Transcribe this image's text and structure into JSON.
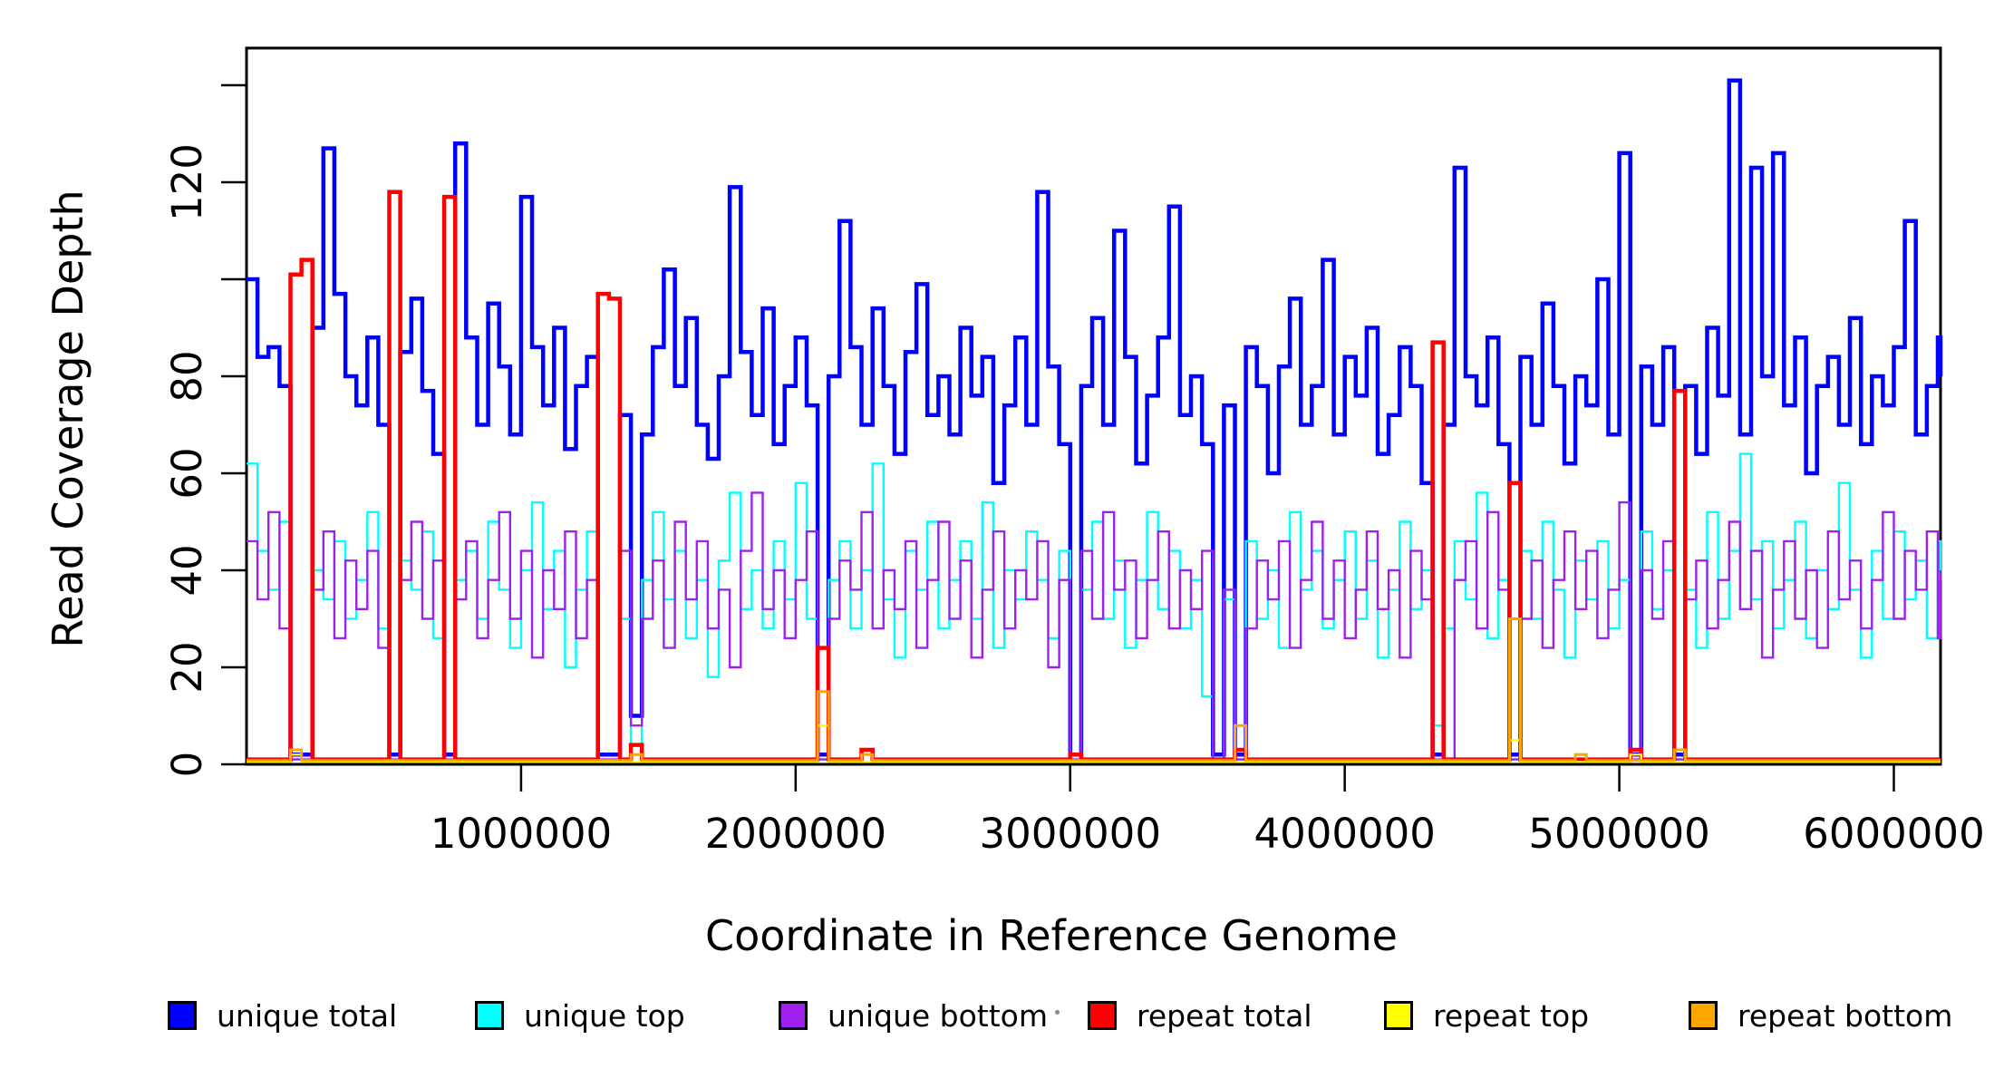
{
  "figure": {
    "y_axis": {
      "title": "Read Coverage Depth",
      "ticks": [
        0,
        20,
        40,
        60,
        80,
        100,
        120,
        140
      ],
      "labeled_ticks": [
        0,
        20,
        40,
        60,
        80,
        120
      ],
      "range": [
        0,
        147
      ]
    },
    "x_axis": {
      "title": "Coordinate in Reference Genome",
      "ticks": [
        1000000,
        2000000,
        3000000,
        4000000,
        5000000,
        6000000
      ],
      "tick_labels": [
        "1000000",
        "2000000",
        "3000000",
        "4000000",
        "5000000",
        "6000000"
      ],
      "range": [
        0,
        6170000
      ]
    }
  },
  "legend": {
    "items": [
      {
        "label": "unique total",
        "color": "#0000FF"
      },
      {
        "label": "unique top",
        "color": "#00FFFF"
      },
      {
        "label": "unique bottom",
        "color": "#A020F0"
      },
      {
        "label": "repeat total",
        "color": "#FF0000"
      },
      {
        "label": "repeat top",
        "color": "#FFFF00"
      },
      {
        "label": "repeat bottom",
        "color": "#FFA500"
      }
    ]
  },
  "chart_data": {
    "type": "line",
    "step": true,
    "grid": false,
    "legend_position": "bottom",
    "xlim": [
      0,
      6170000
    ],
    "ylim": [
      0,
      147
    ],
    "window_size": 40000,
    "x_start": 0,
    "series": [
      {
        "name": "unique total",
        "color": "#0000FF",
        "line_width": 4.5,
        "values": [
          100,
          84,
          86,
          78,
          2,
          2,
          90,
          127,
          97,
          80,
          74,
          88,
          70,
          2,
          85,
          96,
          77,
          64,
          2,
          128,
          88,
          70,
          95,
          82,
          68,
          117,
          86,
          74,
          90,
          65,
          78,
          84,
          2,
          2,
          72,
          10,
          68,
          86,
          102,
          78,
          92,
          70,
          63,
          80,
          119,
          85,
          72,
          94,
          66,
          78,
          88,
          74,
          2,
          80,
          112,
          86,
          70,
          94,
          78,
          64,
          85,
          99,
          72,
          80,
          68,
          90,
          76,
          84,
          58,
          74,
          88,
          70,
          118,
          82,
          66,
          2,
          78,
          92,
          70,
          110,
          84,
          62,
          76,
          88,
          115,
          72,
          80,
          66,
          2,
          74,
          2,
          86,
          78,
          60,
          82,
          96,
          70,
          78,
          104,
          68,
          84,
          76,
          90,
          64,
          72,
          86,
          78,
          58,
          2,
          70,
          123,
          80,
          74,
          88,
          66,
          2,
          84,
          70,
          95,
          78,
          62,
          80,
          74,
          100,
          68,
          126,
          2,
          82,
          70,
          86,
          2,
          78,
          64,
          90,
          76,
          141,
          68,
          123,
          80,
          126,
          74,
          88,
          60,
          78,
          84,
          70,
          92,
          66,
          80,
          74,
          86,
          112,
          68,
          78,
          88,
          80
        ]
      },
      {
        "name": "unique top",
        "color": "#00FFFF",
        "line_width": 2.4,
        "values": [
          62,
          44,
          36,
          50,
          1,
          1,
          40,
          34,
          46,
          30,
          38,
          52,
          28,
          1,
          42,
          36,
          48,
          26,
          1,
          38,
          44,
          30,
          50,
          36,
          24,
          40,
          54,
          32,
          44,
          20,
          36,
          48,
          1,
          1,
          30,
          2,
          38,
          52,
          34,
          44,
          26,
          38,
          18,
          42,
          56,
          32,
          40,
          28,
          46,
          34,
          58,
          30,
          1,
          38,
          46,
          28,
          40,
          62,
          34,
          22,
          44,
          36,
          50,
          28,
          38,
          46,
          30,
          54,
          24,
          40,
          34,
          48,
          38,
          26,
          44,
          1,
          36,
          50,
          30,
          42,
          24,
          38,
          52,
          32,
          44,
          28,
          38,
          14,
          1,
          34,
          1,
          46,
          30,
          40,
          24,
          52,
          36,
          44,
          28,
          38,
          48,
          30,
          42,
          22,
          36,
          50,
          32,
          40,
          8,
          28,
          46,
          34,
          56,
          26,
          38,
          1,
          44,
          30,
          50,
          36,
          22,
          42,
          34,
          46,
          28,
          38,
          1,
          48,
          32,
          40,
          1,
          36,
          24,
          52,
          30,
          44,
          64,
          34,
          46,
          28,
          38,
          50,
          26,
          40,
          32,
          58,
          36,
          22,
          44,
          30,
          48,
          34,
          42,
          26,
          46,
          38
        ]
      },
      {
        "name": "unique bottom",
        "color": "#A020F0",
        "line_width": 2.4,
        "values": [
          46,
          34,
          52,
          28,
          1,
          1,
          36,
          48,
          26,
          42,
          32,
          44,
          24,
          1,
          38,
          50,
          30,
          42,
          1,
          34,
          46,
          26,
          38,
          52,
          30,
          44,
          22,
          40,
          32,
          48,
          26,
          38,
          1,
          1,
          44,
          8,
          30,
          42,
          24,
          50,
          34,
          46,
          28,
          36,
          20,
          44,
          56,
          32,
          40,
          26,
          38,
          48,
          1,
          30,
          42,
          36,
          52,
          28,
          40,
          32,
          46,
          24,
          38,
          50,
          30,
          42,
          22,
          36,
          48,
          28,
          40,
          34,
          46,
          20,
          38,
          1,
          44,
          30,
          52,
          36,
          42,
          26,
          38,
          48,
          28,
          40,
          32,
          44,
          1,
          36,
          1,
          28,
          42,
          34,
          46,
          24,
          38,
          50,
          30,
          42,
          26,
          36,
          48,
          32,
          40,
          22,
          44,
          34,
          1,
          1,
          38,
          46,
          28,
          52,
          36,
          1,
          30,
          42,
          24,
          38,
          48,
          32,
          44,
          26,
          36,
          54,
          1,
          40,
          30,
          46,
          1,
          34,
          42,
          28,
          38,
          50,
          32,
          44,
          22,
          36,
          46,
          30,
          40,
          24,
          48,
          34,
          42,
          28,
          38,
          52,
          30,
          44,
          36,
          48,
          26,
          40
        ]
      },
      {
        "name": "repeat total",
        "color": "#FF0000",
        "line_width": 4.5,
        "baseline": 1,
        "spikes": {
          "4": 101,
          "5": 104,
          "13": 118,
          "18": 117,
          "32": 97,
          "33": 96,
          "35": 4,
          "52": 24,
          "56": 3,
          "75": 2,
          "90": 3,
          "108": 87,
          "115": 58,
          "126": 3,
          "130": 77
        }
      },
      {
        "name": "repeat top",
        "color": "#FFFF00",
        "line_width": 2.4,
        "baseline": 0.5,
        "spikes": {
          "4": 2,
          "52": 8,
          "115": 5,
          "126": 2
        }
      },
      {
        "name": "repeat bottom",
        "color": "#FFA500",
        "line_width": 3,
        "baseline": 0.8,
        "spikes": {
          "4": 3,
          "35": 2,
          "52": 15,
          "56": 2,
          "90": 8,
          "115": 30,
          "121": 2,
          "130": 3
        }
      }
    ]
  }
}
